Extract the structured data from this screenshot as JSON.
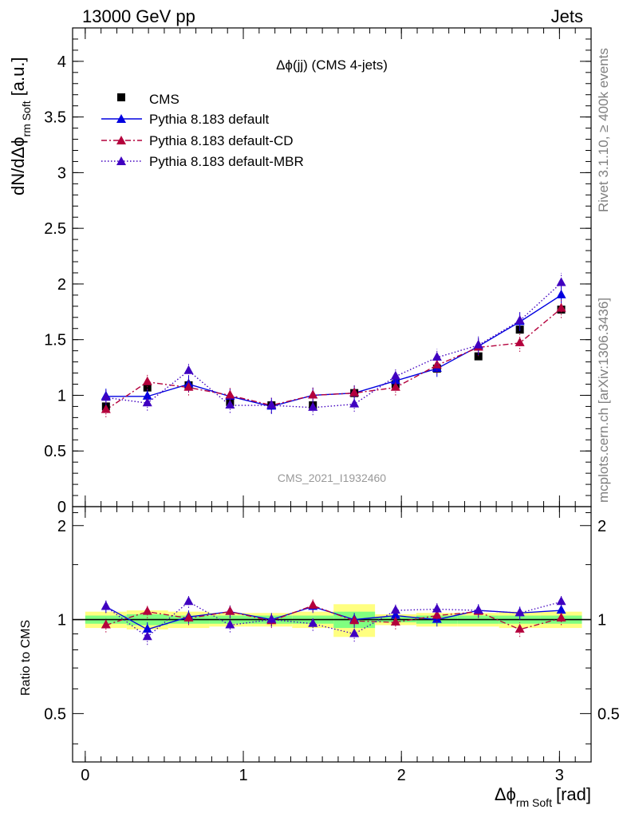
{
  "header": {
    "left": "13000 GeV pp",
    "right": "Jets"
  },
  "side": {
    "rivet": "Rivet 3.1.10, ≥ 400k events",
    "mcplots": "mcplots.cern.ch [arXiv:1306.3436]"
  },
  "colors": {
    "cms": "#000000",
    "default": "#0000e0",
    "cd": "#b4003c",
    "mbr": "#4000c0",
    "band_outer": "#ffff80",
    "band_inner": "#80ff80"
  },
  "chart_data": [
    {
      "type": "line",
      "title": "Δϕ(jj) (CMS 4-jets)",
      "watermark": "CMS_2021_I1932460",
      "ylabel_main": "dN/dΔϕ",
      "ylabel_sub": "rm Soft",
      "ylabel_unit": "[a.u.]",
      "xlim": [
        -0.08,
        3.2
      ],
      "ylim": [
        0,
        4.3
      ],
      "yticks": [
        0,
        0.5,
        1,
        1.5,
        2,
        2.5,
        3,
        3.5,
        4
      ],
      "ytick_labels": [
        "0",
        "0.5",
        "1",
        "1.5",
        "2",
        "2.5",
        "3",
        "3.5",
        "4"
      ],
      "x": [
        0.131,
        0.393,
        0.654,
        0.916,
        1.178,
        1.44,
        1.702,
        1.963,
        2.225,
        2.487,
        2.749,
        3.011
      ],
      "series": [
        {
          "name": "CMS",
          "style": "markers-square",
          "values": [
            0.9,
            1.07,
            1.09,
            0.94,
            0.91,
            0.91,
            1.02,
            1.1,
            1.24,
            1.35,
            1.59,
            1.77
          ]
        },
        {
          "name": "Pythia 8.183 default",
          "style": "solid",
          "values": [
            0.99,
            0.99,
            1.1,
            0.99,
            0.9,
            1.0,
            1.02,
            1.13,
            1.24,
            1.44,
            1.66,
            1.9
          ]
        },
        {
          "name": "Pythia 8.183 default-CD",
          "style": "dashdot",
          "values": [
            0.87,
            1.12,
            1.07,
            1.0,
            0.91,
            1.0,
            1.02,
            1.07,
            1.27,
            1.43,
            1.47,
            1.78
          ]
        },
        {
          "name": "Pythia 8.183 default-MBR",
          "style": "dotted",
          "values": [
            0.98,
            0.93,
            1.22,
            0.91,
            0.91,
            0.89,
            0.92,
            1.17,
            1.34,
            1.45,
            1.67,
            2.01
          ]
        }
      ]
    },
    {
      "type": "line",
      "ylabel": "Ratio to CMS",
      "xlabel_main": "Δϕ",
      "xlabel_sub": "rm Soft",
      "xlabel_unit": "[rad]",
      "xlim": [
        -0.08,
        3.2
      ],
      "ylim": [
        0.35,
        2.3
      ],
      "yticks": [
        0.5,
        1,
        2
      ],
      "ytick_labels": [
        "0.5",
        "1",
        "2"
      ],
      "xticks": [
        0,
        1,
        2,
        3
      ],
      "xtick_labels": [
        "0",
        "1",
        "2",
        "3"
      ],
      "band_edges": [
        0.0,
        0.262,
        0.524,
        0.785,
        1.047,
        1.309,
        1.571,
        1.833,
        2.094,
        2.356,
        2.618,
        2.88,
        3.142
      ],
      "band_outer": [
        0.06,
        0.07,
        0.06,
        0.05,
        0.05,
        0.06,
        0.12,
        0.04,
        0.05,
        0.05,
        0.06,
        0.06
      ],
      "band_inner": [
        0.03,
        0.04,
        0.03,
        0.03,
        0.03,
        0.03,
        0.06,
        0.02,
        0.03,
        0.03,
        0.03,
        0.03
      ],
      "series": [
        {
          "name": "Pythia 8.183 default",
          "style": "solid",
          "values": [
            1.1,
            0.93,
            1.02,
            1.06,
            1.0,
            1.1,
            1.0,
            1.03,
            1.0,
            1.07,
            1.05,
            1.07
          ]
        },
        {
          "name": "Pythia 8.183 default-CD",
          "style": "dashdot",
          "values": [
            0.96,
            1.06,
            1.01,
            1.06,
            0.99,
            1.11,
            0.99,
            0.98,
            1.03,
            1.06,
            0.93,
            1.01
          ]
        },
        {
          "name": "Pythia 8.183 default-MBR",
          "style": "dotted",
          "values": [
            1.1,
            0.88,
            1.14,
            0.96,
            1.0,
            0.97,
            0.9,
            1.07,
            1.08,
            1.07,
            1.05,
            1.14
          ]
        }
      ]
    }
  ]
}
